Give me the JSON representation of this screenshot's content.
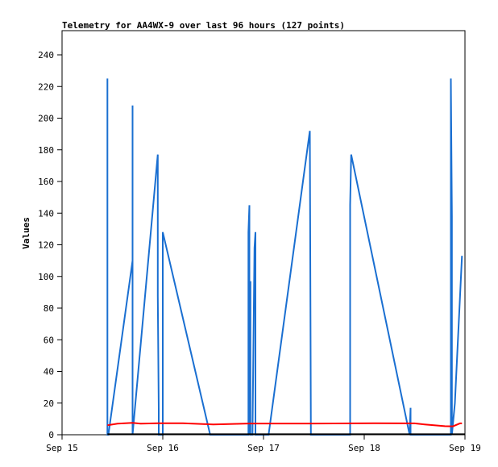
{
  "chart_data": {
    "type": "line",
    "title": "Telemetry for AA4WX-9 over last 96 hours (127 points)",
    "ylabel": "Values",
    "xlabel": "",
    "xlim": [
      0,
      4
    ],
    "ylim": [
      0,
      255
    ],
    "x_ticks": [
      {
        "x": 0,
        "label": "Sep 15"
      },
      {
        "x": 1,
        "label": "Sep 16"
      },
      {
        "x": 2,
        "label": "Sep 17"
      },
      {
        "x": 3,
        "label": "Sep 18"
      },
      {
        "x": 4,
        "label": "Sep 19"
      }
    ],
    "y_ticks": [
      {
        "y": 0,
        "label": "0"
      },
      {
        "y": 20,
        "label": "20"
      },
      {
        "y": 40,
        "label": "40"
      },
      {
        "y": 60,
        "label": "60"
      },
      {
        "y": 80,
        "label": "80"
      },
      {
        "y": 100,
        "label": "100"
      },
      {
        "y": 120,
        "label": "120"
      },
      {
        "y": 140,
        "label": "140"
      },
      {
        "y": 160,
        "label": "160"
      },
      {
        "y": 180,
        "label": "180"
      },
      {
        "y": 200,
        "label": "200"
      },
      {
        "y": 220,
        "label": "220"
      },
      {
        "y": 240,
        "label": "240"
      }
    ],
    "grid": false,
    "series": [
      {
        "color": "#1a6fd1",
        "points": [
          [
            0.45,
            225
          ],
          [
            0.45,
            0
          ],
          [
            0.46,
            0
          ],
          [
            0.7,
            110
          ],
          [
            0.7,
            208
          ],
          [
            0.7,
            0
          ],
          [
            0.95,
            177
          ],
          [
            0.95,
            88
          ],
          [
            0.96,
            16
          ],
          [
            0.96,
            0
          ],
          [
            1.0,
            0
          ],
          [
            1.0,
            128
          ],
          [
            1.47,
            0
          ],
          [
            1.85,
            0
          ],
          [
            1.85,
            128
          ],
          [
            1.86,
            145
          ],
          [
            1.86,
            0
          ],
          [
            1.87,
            97
          ],
          [
            1.87,
            0
          ],
          [
            1.89,
            0
          ],
          [
            1.91,
            118
          ],
          [
            1.92,
            128
          ],
          [
            1.92,
            0
          ],
          [
            2.05,
            0
          ],
          [
            2.46,
            192
          ],
          [
            2.47,
            0
          ],
          [
            2.86,
            0
          ],
          [
            2.86,
            145
          ],
          [
            2.87,
            177
          ],
          [
            3.45,
            0
          ],
          [
            3.46,
            17
          ],
          [
            3.46,
            0
          ],
          [
            3.86,
            0
          ],
          [
            3.86,
            225
          ],
          [
            3.87,
            138
          ],
          [
            3.87,
            0
          ],
          [
            3.9,
            20
          ],
          [
            3.97,
            113
          ]
        ]
      },
      {
        "color": "#ff0000",
        "points": [
          [
            0.45,
            6
          ],
          [
            0.55,
            7
          ],
          [
            0.7,
            7.5
          ],
          [
            0.78,
            7
          ],
          [
            0.95,
            7.3
          ],
          [
            1.2,
            7.3
          ],
          [
            1.5,
            6.5
          ],
          [
            1.85,
            7.1
          ],
          [
            2.0,
            7.1
          ],
          [
            2.5,
            7.1
          ],
          [
            3.1,
            7.3
          ],
          [
            3.5,
            7.2
          ],
          [
            3.6,
            6.5
          ],
          [
            3.8,
            5.4
          ],
          [
            3.88,
            5.3
          ],
          [
            3.95,
            7.2
          ],
          [
            3.97,
            7.2
          ]
        ]
      },
      {
        "color": "#000000",
        "points": [
          [
            0.45,
            0.3
          ],
          [
            4.0,
            0.3
          ]
        ]
      }
    ]
  }
}
